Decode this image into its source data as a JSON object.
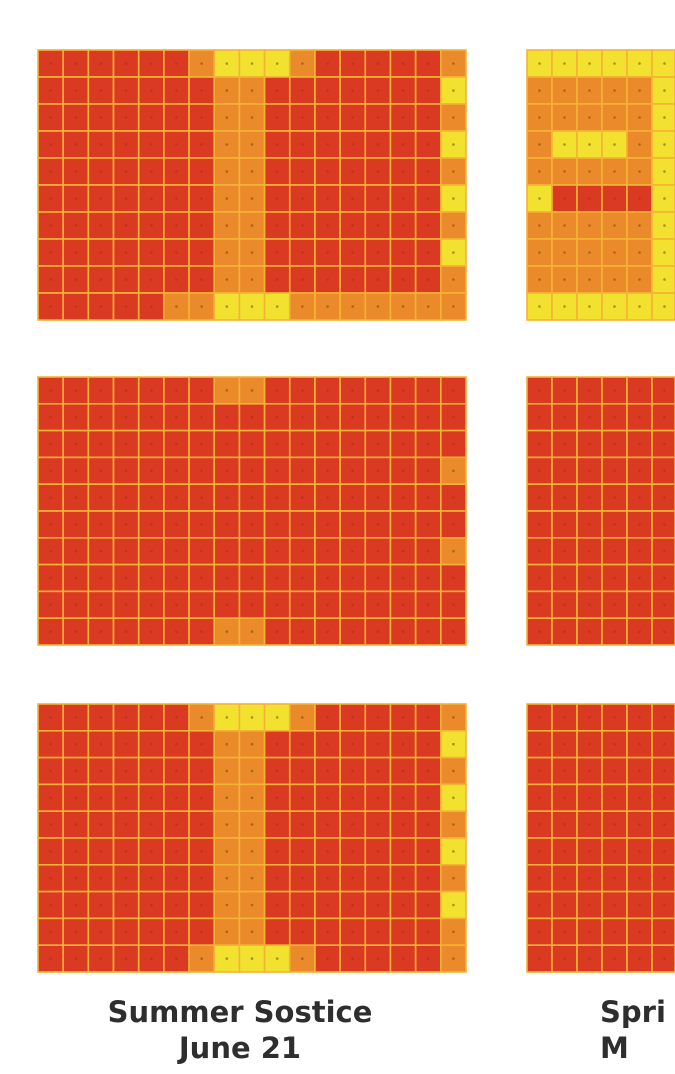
{
  "captions": [
    {
      "line1": "Summer Sostice",
      "line2": "June 21"
    },
    {
      "line1": "Spri",
      "line2": "M"
    }
  ],
  "colors": {
    "low": "#d93a21",
    "mid": "#ea8a2a",
    "high": "#f2e12f",
    "grid_line": "#f5b336",
    "background": "#ffffff"
  },
  "grid": {
    "rows": 10,
    "cols_full": 17,
    "cols_partial": 6
  },
  "panels": [
    {
      "id": "left-top",
      "cells": {
        "mid": [
          [
            0,
            6
          ],
          [
            0,
            10
          ],
          [
            0,
            16
          ],
          [
            1,
            7
          ],
          [
            1,
            8
          ],
          [
            1,
            16
          ],
          [
            2,
            7
          ],
          [
            2,
            8
          ],
          [
            2,
            16
          ],
          [
            3,
            7
          ],
          [
            3,
            8
          ],
          [
            3,
            16
          ],
          [
            4,
            7
          ],
          [
            4,
            8
          ],
          [
            4,
            16
          ],
          [
            5,
            7
          ],
          [
            5,
            8
          ],
          [
            5,
            16
          ],
          [
            6,
            7
          ],
          [
            6,
            8
          ],
          [
            6,
            16
          ],
          [
            7,
            7
          ],
          [
            7,
            8
          ],
          [
            7,
            16
          ],
          [
            8,
            7
          ],
          [
            8,
            8
          ],
          [
            8,
            16
          ],
          [
            9,
            5
          ],
          [
            9,
            6
          ],
          [
            9,
            10
          ],
          [
            9,
            11
          ],
          [
            9,
            12
          ],
          [
            9,
            13
          ],
          [
            9,
            14
          ],
          [
            9,
            15
          ],
          [
            9,
            16
          ]
        ],
        "high": [
          [
            0,
            7
          ],
          [
            0,
            8
          ],
          [
            0,
            9
          ],
          [
            1,
            16
          ],
          [
            3,
            16
          ],
          [
            5,
            16
          ],
          [
            7,
            16
          ],
          [
            9,
            7
          ],
          [
            9,
            8
          ],
          [
            9,
            9
          ]
        ]
      }
    },
    {
      "id": "right-top",
      "cells": {
        "mid": [
          [
            1,
            0
          ],
          [
            1,
            1
          ],
          [
            1,
            2
          ],
          [
            1,
            3
          ],
          [
            1,
            4
          ],
          [
            2,
            0
          ],
          [
            2,
            1
          ],
          [
            2,
            2
          ],
          [
            2,
            3
          ],
          [
            2,
            4
          ],
          [
            3,
            0
          ],
          [
            3,
            4
          ],
          [
            4,
            0
          ],
          [
            4,
            1
          ],
          [
            4,
            2
          ],
          [
            4,
            3
          ],
          [
            4,
            4
          ],
          [
            6,
            0
          ],
          [
            6,
            1
          ],
          [
            6,
            2
          ],
          [
            6,
            3
          ],
          [
            6,
            4
          ],
          [
            7,
            0
          ],
          [
            7,
            1
          ],
          [
            7,
            2
          ],
          [
            7,
            3
          ],
          [
            7,
            4
          ],
          [
            8,
            0
          ],
          [
            8,
            1
          ],
          [
            8,
            2
          ],
          [
            8,
            3
          ],
          [
            8,
            4
          ]
        ],
        "high": [
          [
            0,
            0
          ],
          [
            0,
            1
          ],
          [
            0,
            2
          ],
          [
            0,
            3
          ],
          [
            0,
            4
          ],
          [
            0,
            5
          ],
          [
            1,
            5
          ],
          [
            2,
            5
          ],
          [
            3,
            5
          ],
          [
            4,
            5
          ],
          [
            5,
            5
          ],
          [
            6,
            5
          ],
          [
            7,
            5
          ],
          [
            8,
            5
          ],
          [
            9,
            0
          ],
          [
            9,
            1
          ],
          [
            9,
            2
          ],
          [
            9,
            3
          ],
          [
            9,
            4
          ],
          [
            9,
            5
          ],
          [
            5,
            0
          ],
          [
            3,
            1
          ],
          [
            3,
            2
          ],
          [
            3,
            3
          ]
        ]
      }
    },
    {
      "id": "left-mid",
      "cells": {
        "mid": [
          [
            0,
            7
          ],
          [
            0,
            8
          ],
          [
            9,
            7
          ],
          [
            9,
            8
          ],
          [
            3,
            16
          ],
          [
            6,
            16
          ]
        ],
        "high": []
      }
    },
    {
      "id": "right-mid",
      "cells": {
        "mid": [],
        "high": []
      }
    },
    {
      "id": "left-bottom",
      "cells": {
        "mid": [
          [
            0,
            6
          ],
          [
            0,
            10
          ],
          [
            0,
            16
          ],
          [
            1,
            7
          ],
          [
            1,
            8
          ],
          [
            2,
            7
          ],
          [
            2,
            8
          ],
          [
            2,
            16
          ],
          [
            3,
            7
          ],
          [
            3,
            8
          ],
          [
            4,
            7
          ],
          [
            4,
            8
          ],
          [
            4,
            16
          ],
          [
            5,
            7
          ],
          [
            5,
            8
          ],
          [
            6,
            7
          ],
          [
            6,
            8
          ],
          [
            6,
            16
          ],
          [
            7,
            7
          ],
          [
            7,
            8
          ],
          [
            8,
            7
          ],
          [
            8,
            8
          ],
          [
            8,
            16
          ],
          [
            9,
            6
          ],
          [
            9,
            10
          ],
          [
            9,
            16
          ]
        ],
        "high": [
          [
            0,
            7
          ],
          [
            0,
            8
          ],
          [
            0,
            9
          ],
          [
            1,
            16
          ],
          [
            3,
            16
          ],
          [
            5,
            16
          ],
          [
            7,
            16
          ],
          [
            9,
            7
          ],
          [
            9,
            8
          ],
          [
            9,
            9
          ]
        ]
      }
    },
    {
      "id": "right-bottom",
      "cells": {
        "mid": [],
        "high": []
      }
    }
  ]
}
